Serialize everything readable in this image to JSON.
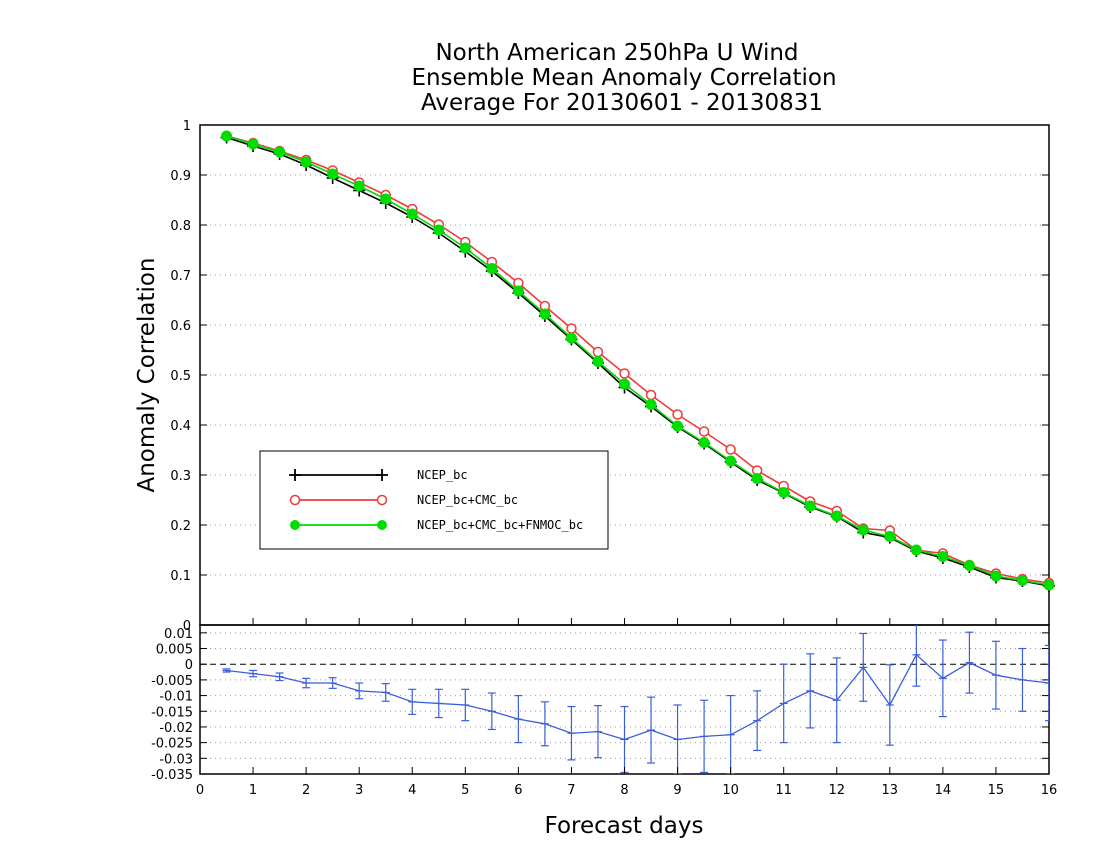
{
  "chart_data": [
    {
      "type": "line",
      "title": [
        "North American 250hPa U Wind",
        "Ensemble Mean Anomaly Correlation",
        "Average For 20130601 - 20130831"
      ],
      "xlabel": "Forecast days",
      "ylabel": "Anomaly Correlation",
      "xlim": [
        0,
        16
      ],
      "ylim": [
        0,
        1
      ],
      "xticks": [
        "0",
        "1",
        "2",
        "3",
        "4",
        "5",
        "6",
        "7",
        "8",
        "9",
        "10",
        "11",
        "12",
        "13",
        "14",
        "15",
        "16"
      ],
      "yticks": [
        "0.1",
        "0.2",
        "0.3",
        "0.4",
        "0.5",
        "0.6",
        "0.7",
        "0.8",
        "0.9",
        "1"
      ],
      "grid": true,
      "legend_position": "left",
      "x": [
        0.5,
        1,
        1.5,
        2,
        2.5,
        3,
        3.5,
        4,
        4.5,
        5,
        5.5,
        6,
        6.5,
        7,
        7.5,
        8,
        8.5,
        9,
        9.5,
        10,
        10.5,
        11,
        11.5,
        12,
        12.5,
        13,
        13.5,
        14,
        14.5,
        15,
        15.5,
        16
      ],
      "series": [
        {
          "name": "NCEP_bc",
          "marker": "plus",
          "color": "#000000",
          "values": [
            0.975,
            0.958,
            0.942,
            0.92,
            0.894,
            0.869,
            0.844,
            0.816,
            0.784,
            0.747,
            0.708,
            0.664,
            0.618,
            0.571,
            0.524,
            0.475,
            0.437,
            0.396,
            0.363,
            0.326,
            0.29,
            0.264,
            0.236,
            0.217,
            0.185,
            0.175,
            0.148,
            0.134,
            0.116,
            0.095,
            0.088,
            0.078
          ]
        },
        {
          "name": "NCEP_bc+CMC_bc",
          "marker": "open-circle",
          "color": "#ee3b3b",
          "values": [
            0.978,
            0.964,
            0.948,
            0.93,
            0.909,
            0.885,
            0.86,
            0.832,
            0.801,
            0.766,
            0.726,
            0.684,
            0.638,
            0.593,
            0.546,
            0.503,
            0.46,
            0.421,
            0.387,
            0.351,
            0.309,
            0.278,
            0.247,
            0.228,
            0.193,
            0.189,
            0.15,
            0.143,
            0.12,
            0.103,
            0.092,
            0.084
          ]
        },
        {
          "name": "NCEP_bc+CMC_bc+FNMOC_bc",
          "marker": "filled-circle",
          "color": "#00dd00",
          "values": [
            0.978,
            0.962,
            0.946,
            0.926,
            0.902,
            0.878,
            0.852,
            0.822,
            0.79,
            0.754,
            0.713,
            0.668,
            0.622,
            0.574,
            0.527,
            0.482,
            0.441,
            0.398,
            0.365,
            0.328,
            0.293,
            0.265,
            0.238,
            0.218,
            0.19,
            0.177,
            0.15,
            0.137,
            0.119,
            0.098,
            0.089,
            0.08
          ]
        }
      ]
    },
    {
      "type": "line",
      "xlim": [
        0,
        16
      ],
      "ylim": [
        -0.035,
        0.0125
      ],
      "yticks": [
        "-0.035",
        "-0.03",
        "-0.025",
        "-0.02",
        "-0.015",
        "-0.01",
        "-0.005",
        "0",
        "0.005",
        "0.01"
      ],
      "grid": true,
      "reference_line": 0,
      "series": [
        {
          "name": "",
          "color": "#3b5fd9",
          "x": [
            0.5,
            1,
            1.5,
            2,
            2.5,
            3,
            3.5,
            4,
            4.5,
            5,
            5.5,
            6,
            6.5,
            7,
            7.5,
            8,
            8.5,
            9,
            9.5,
            10,
            10.5,
            11,
            11.5,
            12,
            12.5,
            13,
            13.5,
            14,
            14.5,
            15,
            15.5,
            16
          ],
          "values": [
            -0.002,
            -0.003,
            -0.004,
            -0.006,
            -0.006,
            -0.0085,
            -0.009,
            -0.012,
            -0.0125,
            -0.013,
            -0.015,
            -0.0175,
            -0.019,
            -0.022,
            -0.0215,
            -0.024,
            -0.021,
            -0.024,
            -0.023,
            -0.0225,
            -0.018,
            -0.0125,
            -0.0085,
            -0.0115,
            -0.001,
            -0.013,
            0.003,
            -0.0045,
            0.0005,
            -0.0035,
            -0.005,
            -0.006
          ],
          "error": [
            0.0005,
            0.001,
            0.0012,
            0.0015,
            0.0017,
            0.0025,
            0.0028,
            0.004,
            0.0045,
            0.005,
            0.0058,
            0.0075,
            0.007,
            0.0085,
            0.0083,
            0.0105,
            0.0105,
            0.011,
            0.0115,
            0.0125,
            0.0095,
            0.0125,
            0.0118,
            0.0135,
            0.0108,
            0.0128,
            0.01,
            0.0122,
            0.0097,
            0.0108,
            0.01,
            0.012
          ]
        }
      ]
    }
  ]
}
